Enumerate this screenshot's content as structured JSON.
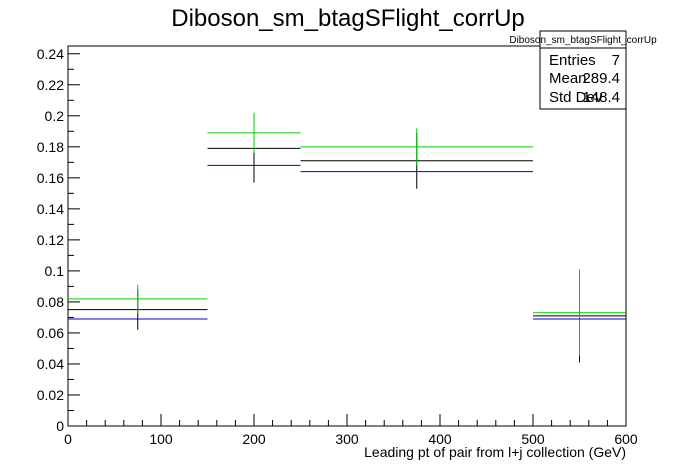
{
  "chart_data": {
    "type": "histogram",
    "title": "Diboson_sm_btagSFlight_corrUp",
    "xlabel": "Leading pt of pair from l+j collection (GeV)",
    "ylabel": "",
    "xlim": [
      0,
      600
    ],
    "ylim": [
      0,
      0.245
    ],
    "x_ticks": [
      "0",
      "100",
      "200",
      "300",
      "400",
      "500",
      "600"
    ],
    "y_ticks": [
      "0",
      "0.02",
      "0.04",
      "0.06",
      "0.08",
      "0.1",
      "0.12",
      "0.14",
      "0.16",
      "0.18",
      "0.2",
      "0.22",
      "0.24"
    ],
    "grid": false,
    "bins": [
      {
        "low": 0,
        "high": 150,
        "center": 75
      },
      {
        "low": 150,
        "high": 250,
        "center": 200
      },
      {
        "low": 250,
        "high": 500,
        "center": 375
      },
      {
        "low": 500,
        "high": 600,
        "center": 550
      }
    ],
    "series": [
      {
        "color": "#000000",
        "values": [
          0.075,
          0.179,
          0.171,
          0.071
        ],
        "errors": [
          0.013,
          0.022,
          0.018,
          0.03
        ]
      },
      {
        "color": "#00cc00",
        "values": [
          0.082,
          0.189,
          0.18,
          0.073
        ],
        "errors": [
          0.009,
          0.013,
          0.012,
          0.028
        ]
      },
      {
        "color": "#0000cc",
        "values": [
          0.069,
          0.168,
          0.164,
          0.069
        ],
        "errors": [
          0,
          0,
          0,
          0
        ]
      }
    ],
    "stats": {
      "name": "Diboson_sm_btagSFlight_corrUp",
      "rows": [
        {
          "label": "Entries",
          "value": "7"
        },
        {
          "label": "Mean",
          "value": "289.4"
        },
        {
          "label": "Std Dev",
          "value": "148.4"
        }
      ]
    }
  }
}
